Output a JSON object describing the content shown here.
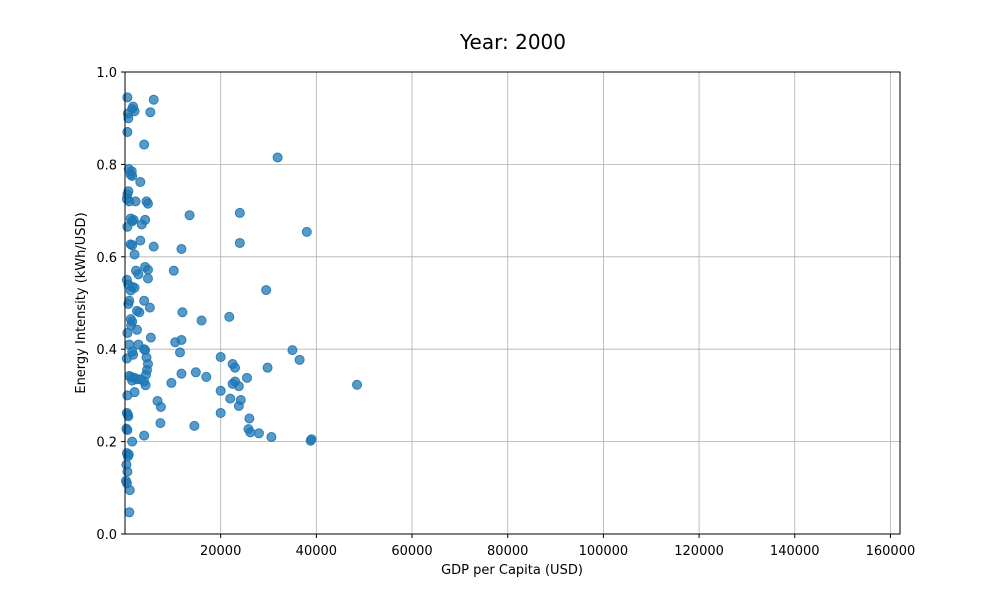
{
  "chart_data": {
    "type": "scatter",
    "title": "Year: 2000",
    "xlabel": "GDP per Capita (USD)",
    "ylabel": "Energy Intensity (kWh/USD)",
    "xlim": [
      0,
      162000
    ],
    "ylim": [
      0,
      1.0
    ],
    "xticks": [
      20000,
      40000,
      60000,
      80000,
      100000,
      120000,
      140000,
      160000
    ],
    "yticks": [
      0.0,
      0.2,
      0.4,
      0.6,
      0.8,
      1.0
    ],
    "grid": true,
    "color": "#1f77b4",
    "points": [
      [
        500,
        0.945
      ],
      [
        600,
        0.91
      ],
      [
        700,
        0.9
      ],
      [
        500,
        0.87
      ],
      [
        1500,
        0.92
      ],
      [
        1700,
        0.925
      ],
      [
        2000,
        0.915
      ],
      [
        6000,
        0.94
      ],
      [
        5300,
        0.913
      ],
      [
        4000,
        0.843
      ],
      [
        31900,
        0.815
      ],
      [
        800,
        0.79
      ],
      [
        1400,
        0.785
      ],
      [
        1500,
        0.775
      ],
      [
        1200,
        0.778
      ],
      [
        3200,
        0.762
      ],
      [
        700,
        0.742
      ],
      [
        500,
        0.735
      ],
      [
        400,
        0.725
      ],
      [
        900,
        0.72
      ],
      [
        2200,
        0.72
      ],
      [
        4500,
        0.72
      ],
      [
        4800,
        0.715
      ],
      [
        1200,
        0.683
      ],
      [
        1500,
        0.677
      ],
      [
        1800,
        0.68
      ],
      [
        4200,
        0.68
      ],
      [
        3500,
        0.67
      ],
      [
        500,
        0.665
      ],
      [
        13500,
        0.69
      ],
      [
        24000,
        0.695
      ],
      [
        38000,
        0.654
      ],
      [
        3200,
        0.635
      ],
      [
        1200,
        0.627
      ],
      [
        1500,
        0.625
      ],
      [
        6000,
        0.622
      ],
      [
        11800,
        0.617
      ],
      [
        24000,
        0.63
      ],
      [
        2000,
        0.605
      ],
      [
        4200,
        0.578
      ],
      [
        4800,
        0.572
      ],
      [
        2300,
        0.57
      ],
      [
        2800,
        0.562
      ],
      [
        10200,
        0.57
      ],
      [
        400,
        0.55
      ],
      [
        4800,
        0.553
      ],
      [
        700,
        0.54
      ],
      [
        1500,
        0.535
      ],
      [
        2000,
        0.533
      ],
      [
        1200,
        0.527
      ],
      [
        29500,
        0.528
      ],
      [
        900,
        0.505
      ],
      [
        700,
        0.498
      ],
      [
        4000,
        0.505
      ],
      [
        5200,
        0.49
      ],
      [
        2500,
        0.483
      ],
      [
        3000,
        0.48
      ],
      [
        12000,
        0.48
      ],
      [
        1200,
        0.465
      ],
      [
        1500,
        0.46
      ],
      [
        16000,
        0.462
      ],
      [
        21800,
        0.47
      ],
      [
        1300,
        0.452
      ],
      [
        2500,
        0.442
      ],
      [
        500,
        0.435
      ],
      [
        5400,
        0.425
      ],
      [
        11800,
        0.42
      ],
      [
        10500,
        0.415
      ],
      [
        900,
        0.41
      ],
      [
        2800,
        0.41
      ],
      [
        4000,
        0.4
      ],
      [
        4200,
        0.398
      ],
      [
        11500,
        0.393
      ],
      [
        35000,
        0.398
      ],
      [
        1500,
        0.395
      ],
      [
        1700,
        0.388
      ],
      [
        4500,
        0.382
      ],
      [
        20000,
        0.383
      ],
      [
        36500,
        0.377
      ],
      [
        400,
        0.38
      ],
      [
        22500,
        0.368
      ],
      [
        4800,
        0.368
      ],
      [
        23000,
        0.36
      ],
      [
        29800,
        0.36
      ],
      [
        4600,
        0.355
      ],
      [
        14800,
        0.35
      ],
      [
        4400,
        0.345
      ],
      [
        11800,
        0.347
      ],
      [
        900,
        0.342
      ],
      [
        1300,
        0.34
      ],
      [
        2000,
        0.338
      ],
      [
        2500,
        0.335
      ],
      [
        17000,
        0.34
      ],
      [
        25500,
        0.338
      ],
      [
        1500,
        0.332
      ],
      [
        3200,
        0.335
      ],
      [
        4000,
        0.33
      ],
      [
        9700,
        0.327
      ],
      [
        23000,
        0.33
      ],
      [
        22500,
        0.325
      ],
      [
        48500,
        0.323
      ],
      [
        4300,
        0.322
      ],
      [
        23800,
        0.32
      ],
      [
        2000,
        0.307
      ],
      [
        20000,
        0.31
      ],
      [
        500,
        0.3
      ],
      [
        6800,
        0.288
      ],
      [
        24200,
        0.29
      ],
      [
        22000,
        0.293
      ],
      [
        7500,
        0.275
      ],
      [
        23800,
        0.277
      ],
      [
        400,
        0.262
      ],
      [
        600,
        0.258
      ],
      [
        700,
        0.255
      ],
      [
        20000,
        0.262
      ],
      [
        26000,
        0.25
      ],
      [
        7400,
        0.24
      ],
      [
        14500,
        0.234
      ],
      [
        300,
        0.228
      ],
      [
        500,
        0.225
      ],
      [
        25800,
        0.227
      ],
      [
        26200,
        0.22
      ],
      [
        28000,
        0.218
      ],
      [
        4000,
        0.213
      ],
      [
        30600,
        0.21
      ],
      [
        39000,
        0.205
      ],
      [
        38800,
        0.202
      ],
      [
        1500,
        0.2
      ],
      [
        400,
        0.175
      ],
      [
        800,
        0.172
      ],
      [
        600,
        0.168
      ],
      [
        300,
        0.15
      ],
      [
        500,
        0.135
      ],
      [
        200,
        0.115
      ],
      [
        400,
        0.11
      ],
      [
        1000,
        0.095
      ],
      [
        900,
        0.047
      ]
    ]
  }
}
